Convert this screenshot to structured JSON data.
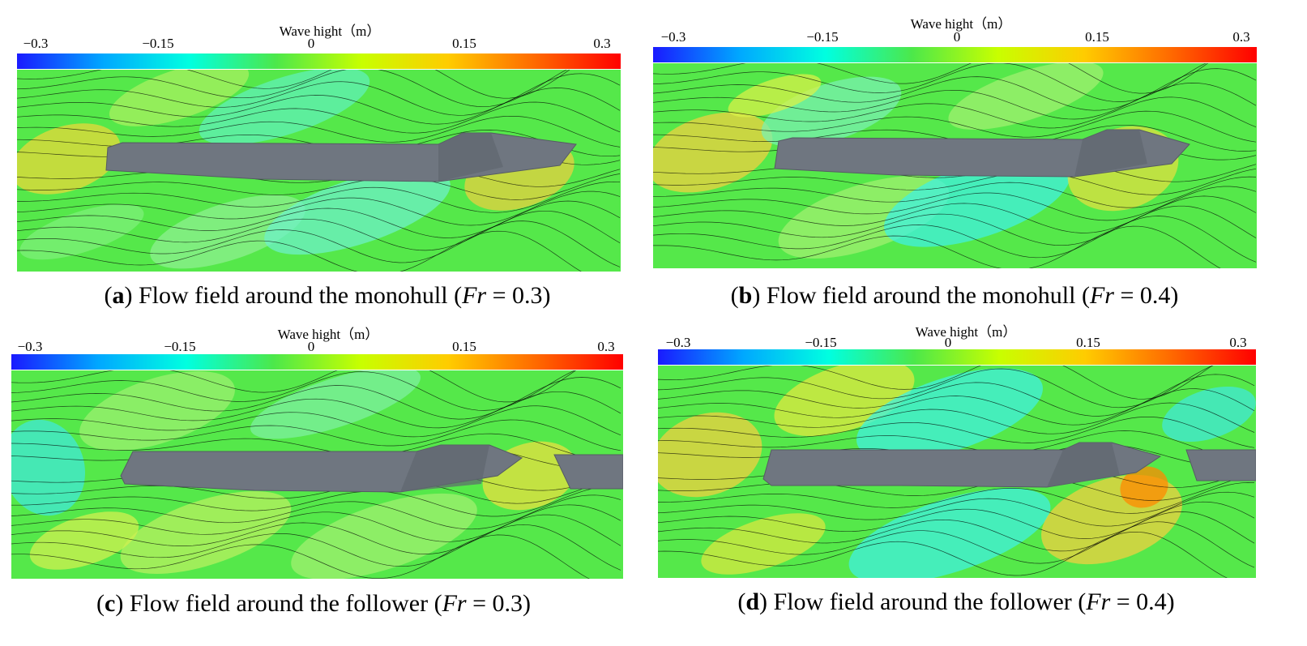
{
  "chart_data": [
    {
      "type": "heatmap",
      "panel_id": "a",
      "colorbar": {
        "title": "Wave hight（m）",
        "ticks": [
          "−0.3",
          "−0.15",
          "0",
          "0.15",
          "0.3"
        ],
        "range": [
          -0.3,
          0.3
        ]
      },
      "caption": {
        "label": "a",
        "text": "Flow field around the monohull",
        "fr_symbol": "Fr",
        "fr_value": "= 0.3)"
      },
      "froude_number": 0.3,
      "configuration": "monohull"
    },
    {
      "type": "heatmap",
      "panel_id": "b",
      "colorbar": {
        "title": "Wave hight（m）",
        "ticks": [
          "−0.3",
          "−0.15",
          "0",
          "0.15",
          "0.3"
        ],
        "range": [
          -0.3,
          0.3
        ]
      },
      "caption": {
        "label": "b",
        "text": "Flow field around the monohull",
        "fr_symbol": "Fr",
        "fr_value": "= 0.4)"
      },
      "froude_number": 0.4,
      "configuration": "monohull"
    },
    {
      "type": "heatmap",
      "panel_id": "c",
      "colorbar": {
        "title": "Wave hight（m）",
        "ticks": [
          "−0.3",
          "−0.15",
          "0",
          "0.15",
          "0.3"
        ],
        "range": [
          -0.3,
          0.3
        ]
      },
      "caption": {
        "label": "c",
        "text": "Flow field around the follower",
        "fr_symbol": "Fr",
        "fr_value": "= 0.3)"
      },
      "froude_number": 0.3,
      "configuration": "follower"
    },
    {
      "type": "heatmap",
      "panel_id": "d",
      "colorbar": {
        "title": "Wave hight（m）",
        "ticks": [
          "−0.3",
          "−0.15",
          "0",
          "0.15",
          "0.3"
        ],
        "range": [
          -0.3,
          0.3
        ]
      },
      "caption": {
        "label": "d",
        "text": "Flow field around the follower",
        "fr_symbol": "Fr",
        "fr_value": "= 0.4)"
      },
      "froude_number": 0.4,
      "configuration": "follower"
    }
  ],
  "colors": {
    "colormap": [
      "#1a1aff",
      "#00a8ff",
      "#00ffe0",
      "#4ce84a",
      "#c8ff00",
      "#ffcc00",
      "#ff6a00",
      "#ff0000"
    ],
    "background": "#55e84a",
    "hull": "#6f7680",
    "contour": "#000000"
  }
}
